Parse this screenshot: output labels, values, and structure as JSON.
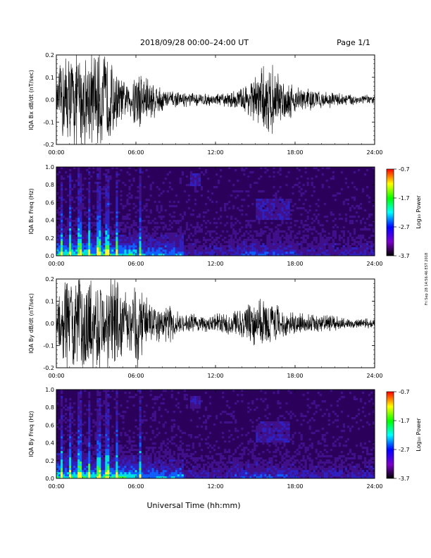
{
  "header": {
    "title": "2018/09/28  00:00–24:00 UT",
    "page_label": "Page 1/1"
  },
  "footer": {
    "xlabel": "Universal Time (hh:mm)"
  },
  "side_stamp": "Fri Sep 28 14:56:46 EST 2018",
  "colorbar": {
    "label": "Log₁₀ Power",
    "ticks": [
      "-0.7",
      "-1.7",
      "-2.7",
      "-3.7"
    ]
  },
  "chart_data": [
    {
      "type": "line",
      "ylabel": "IQA Bx dB/dt (nT/sec)",
      "xlim": [
        0,
        24
      ],
      "ylim": [
        -0.2,
        0.2
      ],
      "yticks": [
        "0.2",
        "0.1",
        "0.0",
        "-0.1",
        "-0.2"
      ],
      "xticks": [
        "00:00",
        "06:00",
        "12:00",
        "18:00",
        "24:00"
      ],
      "series": [
        {
          "envelope_x_hours": [
            0,
            0.5,
            1,
            1.5,
            2,
            2.5,
            3,
            3.5,
            4,
            4.5,
            5,
            5.5,
            6,
            6.5,
            7,
            7.5,
            8,
            8.5,
            9,
            10,
            11,
            12,
            13,
            14,
            14.5,
            15,
            15.5,
            16,
            16.5,
            17,
            17.5,
            18,
            19,
            20,
            21,
            22,
            23,
            24
          ],
          "envelope_amplitude": [
            0.06,
            0.2,
            0.2,
            0.2,
            0.2,
            0.2,
            0.2,
            0.2,
            0.18,
            0.12,
            0.08,
            0.06,
            0.15,
            0.12,
            0.1,
            0.07,
            0.05,
            0.04,
            0.03,
            0.03,
            0.025,
            0.025,
            0.03,
            0.05,
            0.08,
            0.1,
            0.13,
            0.16,
            0.12,
            0.1,
            0.08,
            0.06,
            0.05,
            0.035,
            0.03,
            0.025,
            0.02,
            0.02
          ]
        }
      ]
    },
    {
      "type": "heatmap",
      "ylabel": "IQA Bx Freq (Hz)",
      "xlim": [
        0,
        24
      ],
      "ylim": [
        0,
        1
      ],
      "zlim": [
        -3.7,
        -0.7
      ],
      "yticks": [
        "1.0",
        "0.8",
        "0.6",
        "0.4",
        "0.2",
        "0.0"
      ],
      "xticks": [
        "00:00",
        "06:00",
        "12:00",
        "18:00",
        "24:00"
      ]
    },
    {
      "type": "line",
      "ylabel": "IQA By dB/dt (nT/sec)",
      "xlim": [
        0,
        24
      ],
      "ylim": [
        -0.2,
        0.2
      ],
      "yticks": [
        "0.2",
        "0.1",
        "0.0",
        "-0.1",
        "-0.2"
      ],
      "xticks": [
        "00:00",
        "06:00",
        "12:00",
        "18:00",
        "24:00"
      ],
      "series": [
        {
          "envelope_x_hours": [
            0,
            0.5,
            1,
            1.5,
            2,
            2.5,
            3,
            3.5,
            4,
            4.5,
            5,
            5.5,
            6,
            6.5,
            7,
            7.5,
            8,
            8.5,
            9,
            10,
            11,
            12,
            13,
            14,
            14.5,
            15,
            15.5,
            16,
            16.5,
            17,
            17.5,
            18,
            19,
            20,
            21,
            22,
            23,
            24
          ],
          "envelope_amplitude": [
            0.06,
            0.2,
            0.2,
            0.2,
            0.2,
            0.2,
            0.2,
            0.2,
            0.2,
            0.2,
            0.14,
            0.12,
            0.2,
            0.14,
            0.09,
            0.08,
            0.06,
            0.09,
            0.05,
            0.04,
            0.035,
            0.04,
            0.05,
            0.07,
            0.08,
            0.09,
            0.1,
            0.1,
            0.09,
            0.07,
            0.05,
            0.05,
            0.04,
            0.035,
            0.03,
            0.02,
            0.02,
            0.02
          ]
        }
      ]
    },
    {
      "type": "heatmap",
      "ylabel": "IQA By Freq (Hz)",
      "xlim": [
        0,
        24
      ],
      "ylim": [
        0,
        1
      ],
      "zlim": [
        -3.7,
        -0.7
      ],
      "yticks": [
        "1.0",
        "0.8",
        "0.6",
        "0.4",
        "0.2",
        "0.0"
      ],
      "xticks": [
        "00:00",
        "06:00",
        "12:00",
        "18:00",
        "24:00"
      ]
    }
  ],
  "palette": {
    "trace": "#000000",
    "spectro_background": "#2a005a",
    "colorbar_stops": [
      "#ff0000",
      "#ffff00",
      "#00ff00",
      "#00ffff",
      "#0000ff",
      "#7a00c8",
      "#000000"
    ]
  }
}
